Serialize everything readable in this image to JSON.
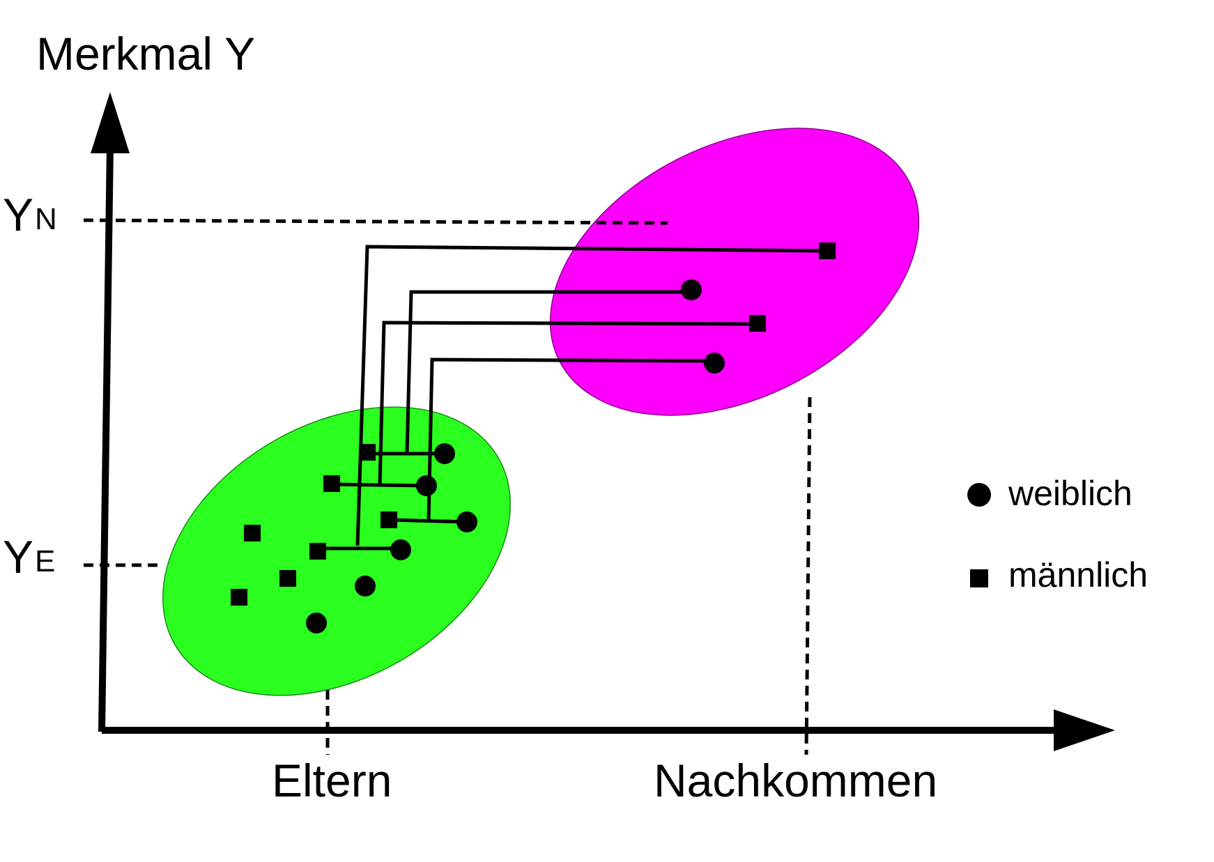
{
  "axis": {
    "y_title": "Merkmal Y",
    "y_levels": [
      {
        "main": "Y",
        "sub": "N"
      },
      {
        "main": "Y",
        "sub": "E"
      }
    ],
    "x_groups": [
      "Eltern",
      "Nachkommen"
    ]
  },
  "legend": {
    "female_label": "weiblich",
    "male_label": "männlich"
  },
  "colors": {
    "parents_ellipse": "#2bff1f",
    "offspring_ellipse": "#ff00ff",
    "ink": "#000000"
  },
  "marker_types": {
    "female": "circle",
    "male": "square"
  }
}
